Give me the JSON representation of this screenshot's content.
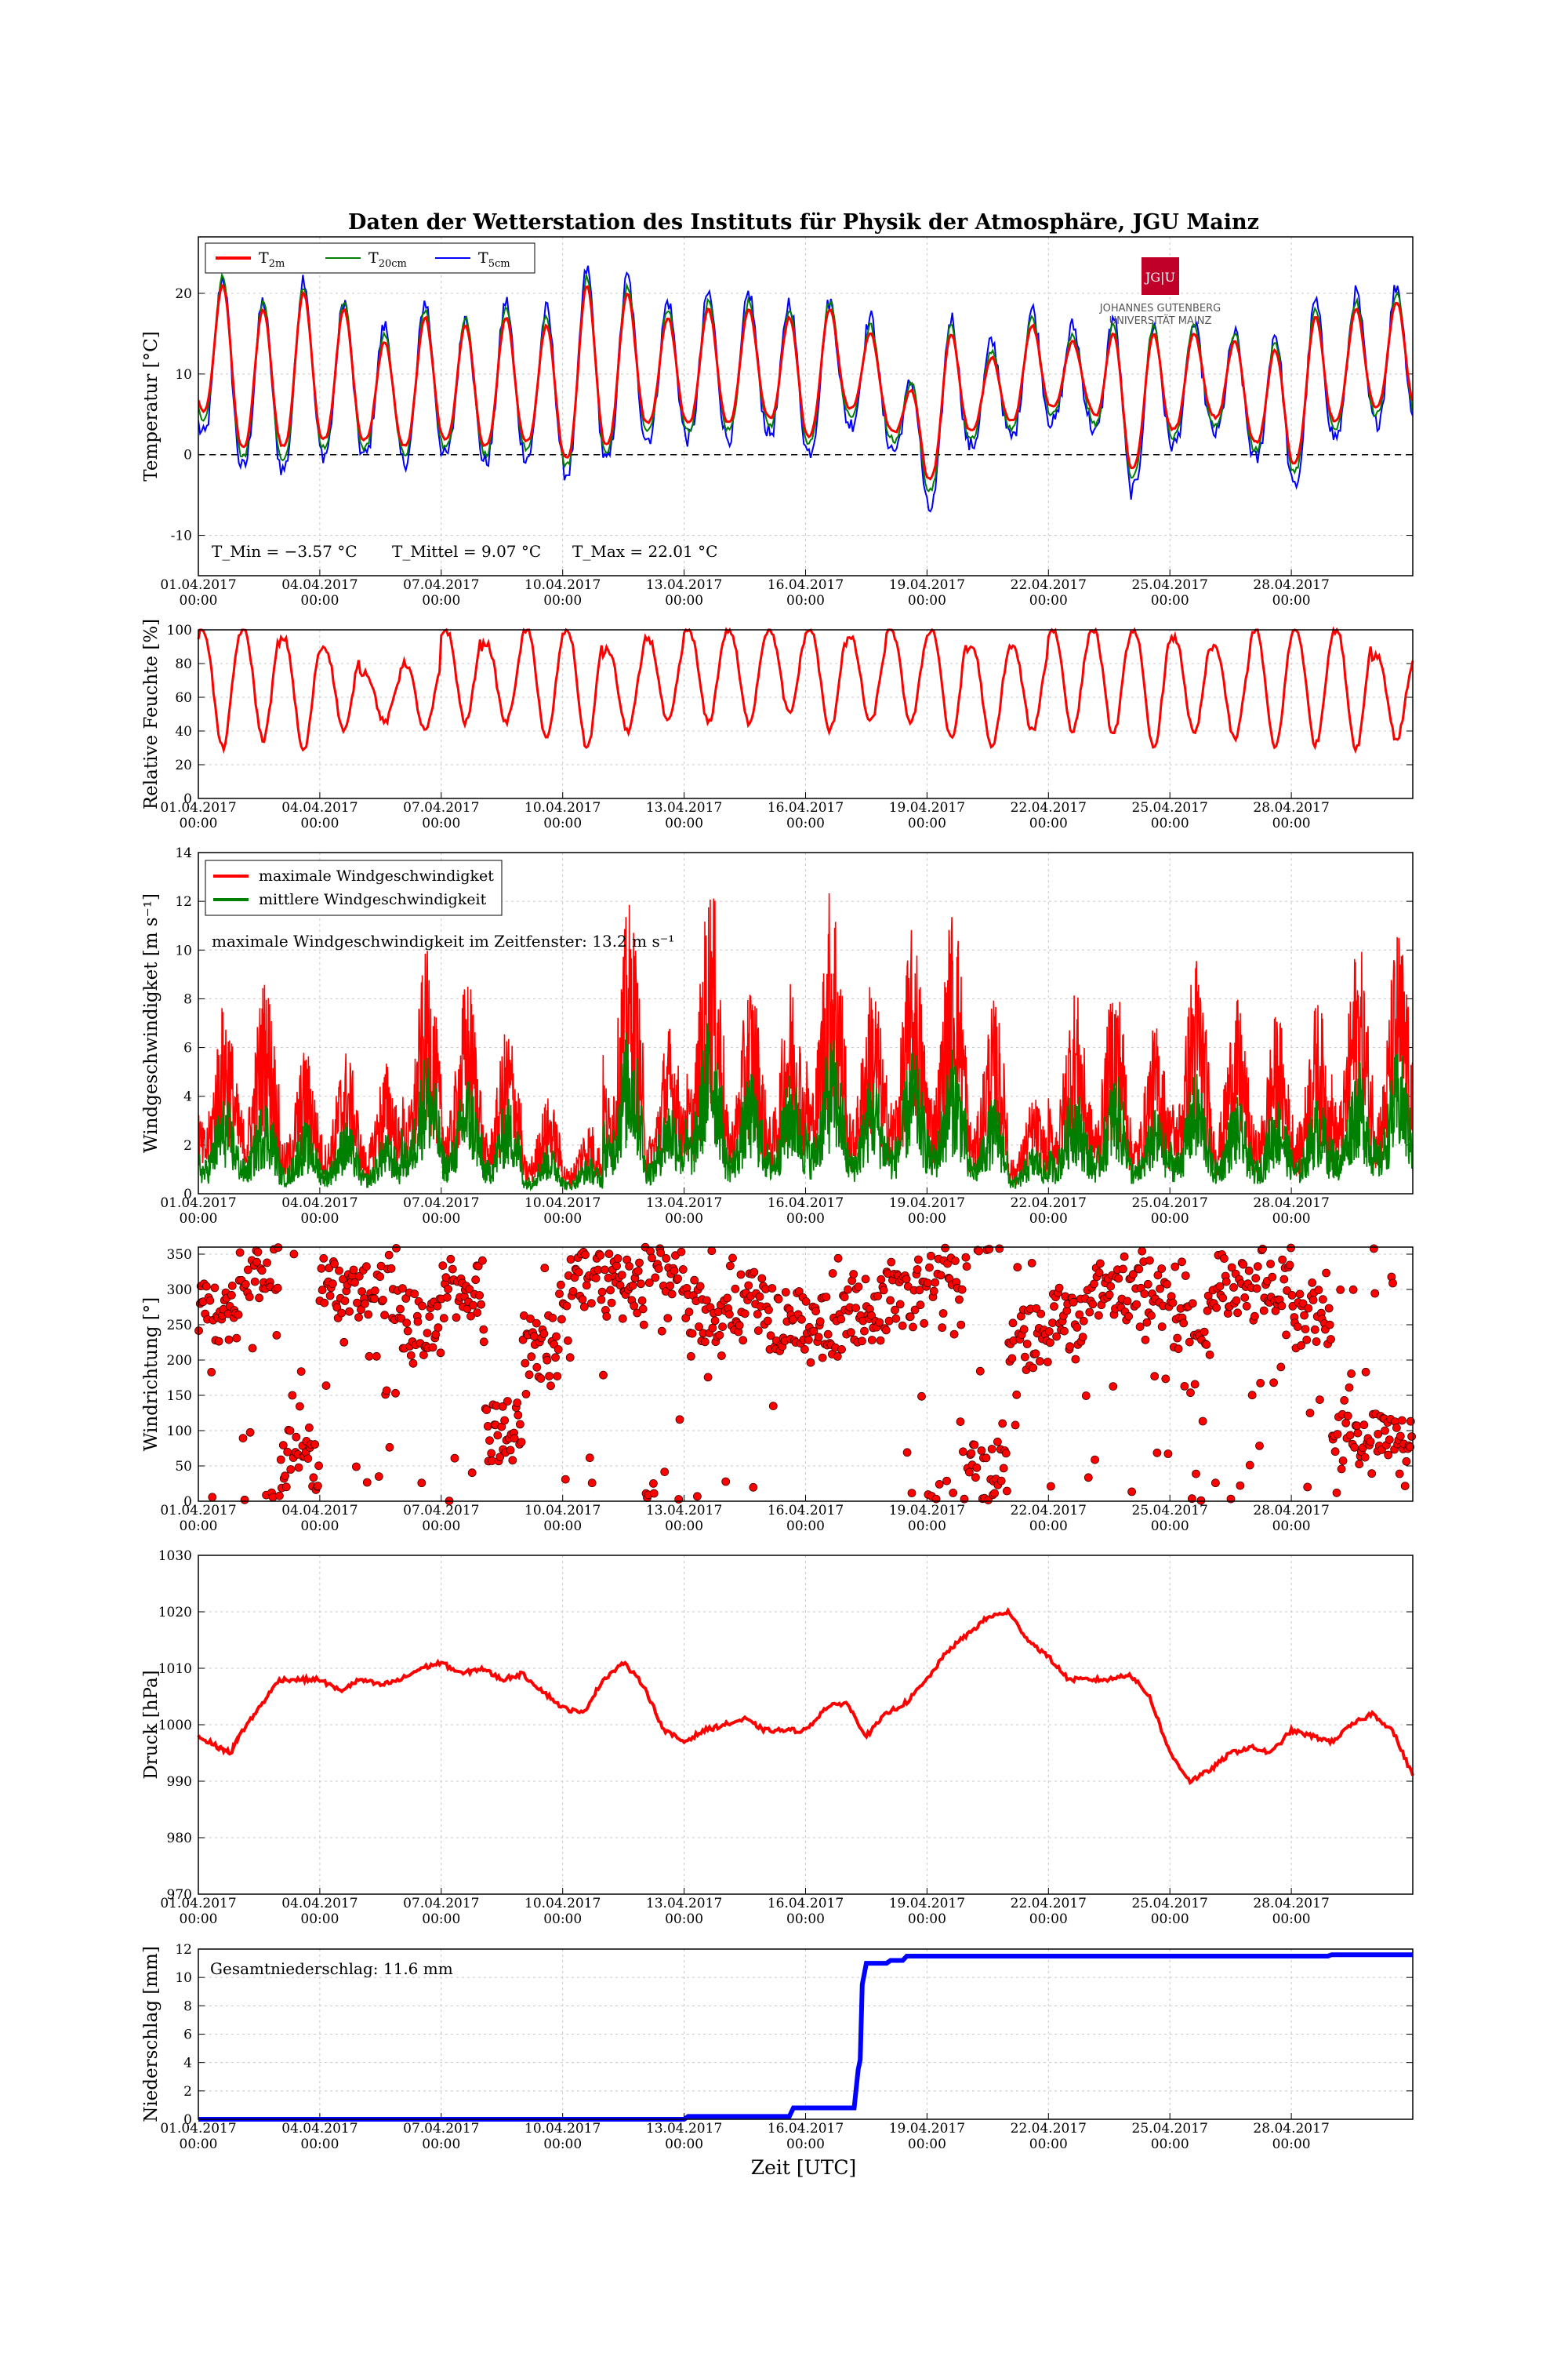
{
  "figure": {
    "title": "Daten der Wetterstation des Instituts für Physik der Atmosphäre, JGU Mainz",
    "xlabel": "Zeit [UTC]",
    "logo": {
      "text_top": "JG|U",
      "text_line1": "JOHANNES GUTENBERG",
      "text_line2": "UNIVERSITÄT MAINZ",
      "color": "#c1002a"
    },
    "colors": {
      "red": "#ff0000",
      "green": "#008000",
      "blue": "#0000ff",
      "grid": "#c8c8c8"
    }
  },
  "chart_data": [
    {
      "id": "temperature",
      "type": "line",
      "ylabel": "Temperatur [°C]",
      "ylim": [
        -15,
        27
      ],
      "yticks": [
        -10,
        0,
        10,
        20
      ],
      "xticks": [
        "01.04.2017 00:00",
        "04.04.2017 00:00",
        "07.04.2017 00:00",
        "10.04.2017 00:00",
        "13.04.2017 00:00",
        "16.04.2017 00:00",
        "19.04.2017 00:00",
        "22.04.2017 00:00",
        "25.04.2017 00:00",
        "28.04.2017 00:00"
      ],
      "grid": true,
      "legend": "top-left",
      "zero_line": true,
      "series": [
        {
          "name": "T2m",
          "color": "#ff0000",
          "daily_min": [
            6,
            1,
            1,
            2,
            2,
            1,
            2,
            1,
            2,
            -0.5,
            1,
            4,
            4,
            4,
            5,
            2,
            6,
            4,
            -3.5,
            3,
            4,
            6,
            6,
            -2,
            3,
            5,
            2,
            -1.5,
            4,
            6
          ],
          "daily_max": [
            21,
            18,
            20,
            18,
            14,
            17,
            16,
            17,
            16,
            21,
            20,
            17,
            18,
            18,
            17,
            18,
            15,
            8,
            15,
            12,
            16,
            14,
            15,
            15,
            15,
            14,
            13,
            17,
            18,
            19
          ]
        },
        {
          "name": "T20cm",
          "color": "#008000",
          "daily_min": [
            5,
            0,
            -1,
            1,
            1,
            0,
            1,
            0,
            1,
            -1.5,
            0,
            3,
            3,
            3,
            4,
            1,
            5,
            3,
            -5,
            2,
            3,
            5,
            5,
            -3,
            2,
            4,
            1,
            -2.5,
            3,
            5
          ],
          "daily_max": [
            22,
            19,
            21,
            19,
            15,
            18,
            17,
            18,
            17,
            22,
            21,
            18,
            19,
            19,
            18,
            19,
            16,
            9,
            16,
            13,
            17,
            15,
            16,
            16,
            16,
            15,
            14,
            18,
            19,
            20
          ]
        },
        {
          "name": "T5cm",
          "color": "#0000ff",
          "daily_min": [
            3,
            -1.5,
            -2,
            0,
            0,
            -1,
            0,
            -1,
            0,
            -2.5,
            -1,
            2,
            2,
            2,
            3,
            0,
            4,
            2,
            -7.5,
            1,
            2,
            4,
            4,
            -5,
            1,
            3,
            0,
            -4.5,
            2,
            4
          ],
          "daily_max": [
            22,
            19,
            22,
            19,
            16,
            19,
            17,
            19,
            18,
            23,
            22,
            19,
            20,
            20,
            19,
            19,
            17,
            9,
            17,
            14,
            18,
            16,
            17,
            16,
            16,
            15,
            15,
            19,
            20,
            21
          ]
        }
      ],
      "stats": {
        "tmin": "T_Min = −3.57 °C",
        "tmean": "T_Mittel = 9.07 °C",
        "tmax": "T_Max = 22.01 °C"
      }
    },
    {
      "id": "humidity",
      "type": "line",
      "ylabel": "Relative Feuchte [%]",
      "ylim": [
        0,
        100
      ],
      "yticks": [
        0,
        20,
        40,
        60,
        80,
        100
      ],
      "grid": true,
      "series": [
        {
          "name": "Relative Feuchte",
          "color": "#ff0000",
          "daily_max": [
            100,
            100,
            95,
            90,
            75,
            80,
            100,
            92,
            100,
            100,
            88,
            95,
            100,
            100,
            100,
            100,
            95,
            100,
            100,
            90,
            90,
            100,
            100,
            100,
            95,
            90,
            100,
            100,
            100,
            85
          ],
          "daily_min": [
            30,
            35,
            28,
            40,
            45,
            40,
            45,
            45,
            35,
            30,
            40,
            45,
            45,
            45,
            50,
            40,
            45,
            45,
            35,
            30,
            40,
            40,
            38,
            30,
            38,
            35,
            30,
            32,
            30,
            35
          ]
        }
      ]
    },
    {
      "id": "wind_speed",
      "type": "line",
      "ylabel": "Windgeschwindigket [m s⁻¹]",
      "ylim": [
        0,
        14
      ],
      "yticks": [
        0,
        2,
        4,
        6,
        8,
        10,
        12,
        14
      ],
      "grid": true,
      "legend": "top-left",
      "annotation": "maximale Windgeschwindigkeit im Zeitfenster: 13.2 m s⁻¹",
      "series": [
        {
          "name": "maximale Windgeschwindigket",
          "color": "#ff0000",
          "daily_peak": [
            8,
            9,
            6,
            6,
            5.5,
            10,
            9,
            7,
            4,
            3,
            12,
            7,
            13,
            9,
            9,
            13,
            9,
            11,
            12,
            8,
            4,
            8.5,
            9,
            7,
            10,
            8,
            7.5,
            8,
            10.5,
            11
          ]
        },
        {
          "name": "mittlere Windgeschwindigkeit",
          "color": "#008000",
          "daily_peak": [
            4,
            4,
            3,
            3,
            2.5,
            6,
            5,
            4,
            2,
            1.5,
            7,
            4,
            7.5,
            5,
            5,
            6.5,
            5,
            6,
            6,
            4,
            2,
            4.5,
            5,
            3.5,
            5,
            4,
            4,
            4,
            5.5,
            6
          ]
        }
      ]
    },
    {
      "id": "wind_direction",
      "type": "scatter",
      "ylabel": "Windrichtung [°]",
      "ylim": [
        0,
        360
      ],
      "yticks": [
        0,
        50,
        100,
        150,
        200,
        250,
        300,
        350
      ],
      "grid": true,
      "series": [
        {
          "name": "Windrichtung",
          "color": "#ff0000",
          "daily_center": [
            270,
            330,
            60,
            300,
            300,
            250,
            300,
            100,
            220,
            320,
            300,
            330,
            270,
            280,
            260,
            250,
            270,
            290,
            330,
            40,
            230,
            260,
            300,
            290,
            250,
            310,
            300,
            260,
            80,
            80
          ]
        }
      ]
    },
    {
      "id": "pressure",
      "type": "line",
      "ylabel": "Druck [hPa]",
      "ylim": [
        970,
        1030
      ],
      "yticks": [
        970,
        980,
        990,
        1000,
        1010,
        1020,
        1030
      ],
      "grid": true,
      "series": [
        {
          "name": "Druck",
          "color": "#ff0000",
          "x_days": [
            0,
            0.5,
            0.8,
            1,
            1.5,
            2,
            2.5,
            3,
            3.5,
            4,
            4.5,
            5,
            5.5,
            6,
            6.5,
            7,
            7.5,
            8,
            8.5,
            9,
            9.5,
            10,
            10.5,
            11,
            11.5,
            12,
            12.5,
            13,
            13.5,
            14,
            14.5,
            15,
            15.5,
            16,
            16.5,
            17,
            17.5,
            18,
            18.5,
            19,
            19.5,
            20,
            20.5,
            21,
            21.5,
            22,
            22.5,
            23,
            23.5,
            24,
            24.5,
            25,
            25.5,
            26,
            26.5,
            27,
            27.5,
            28,
            28.5,
            29,
            29.5,
            30
          ],
          "y": [
            998,
            996,
            995,
            998,
            1003,
            1008,
            1008,
            1008,
            1006,
            1008,
            1007,
            1008,
            1010,
            1011,
            1009,
            1010,
            1008,
            1009,
            1006,
            1003,
            1002,
            1008,
            1011,
            1007,
            999,
            997,
            999,
            1000,
            1001,
            999,
            999,
            999,
            1003,
            1004,
            998,
            1002,
            1004,
            1008,
            1013,
            1016,
            1019,
            1020,
            1015,
            1012,
            1008,
            1008,
            1008,
            1009,
            1005,
            995,
            990,
            992,
            995,
            996,
            995,
            999,
            998,
            997,
            1000,
            1002,
            999,
            991
          ]
        }
      ]
    },
    {
      "id": "precipitation",
      "type": "line",
      "ylabel": "Niederschlag [mm]",
      "ylim": [
        0,
        12
      ],
      "yticks": [
        0,
        2,
        4,
        6,
        8,
        10,
        12
      ],
      "grid": true,
      "annotation": "Gesamtniederschlag: 11.6 mm",
      "series": [
        {
          "name": "Niederschlag",
          "color": "#0000ff",
          "x_days": [
            0,
            12,
            12.1,
            14.6,
            14.7,
            16.2,
            16.3,
            16.35,
            16.4,
            16.5,
            17,
            17.1,
            17.4,
            17.5,
            25,
            25.1,
            27.9,
            28,
            30
          ],
          "y": [
            0,
            0,
            0.2,
            0.2,
            0.8,
            0.8,
            3.5,
            4.2,
            9.5,
            11.0,
            11.0,
            11.2,
            11.2,
            11.5,
            11.5,
            11.5,
            11.5,
            11.6,
            11.6
          ]
        }
      ]
    }
  ]
}
